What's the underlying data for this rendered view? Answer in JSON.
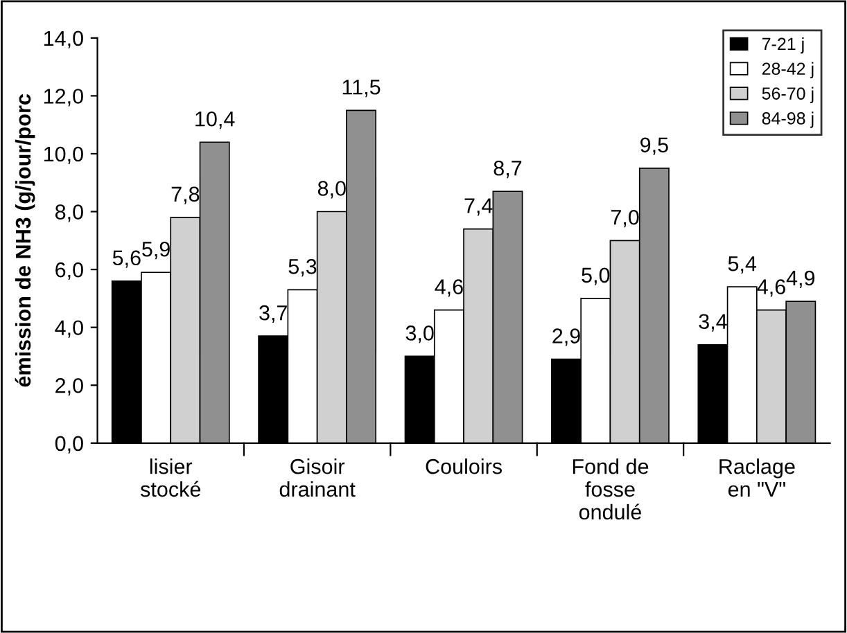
{
  "chart_data": {
    "type": "bar",
    "ylabel": "émission de NH3 (g/jour/porc",
    "categories": [
      "lisier\nstocké",
      "Gisoir\ndrainant",
      "Couloirs",
      "Fond de\nfosse\nondulé",
      "Raclage\nen \"V\""
    ],
    "series": [
      {
        "name": "7-21 j",
        "color": "#000000",
        "values": [
          5.6,
          3.7,
          3.0,
          2.9,
          3.4
        ],
        "value_labels": [
          "5,6",
          "3,7",
          "3,0",
          "2,9",
          "3,4"
        ]
      },
      {
        "name": "28-42 j",
        "color": "#ffffff",
        "values": [
          5.9,
          5.3,
          4.6,
          5.0,
          5.4
        ],
        "value_labels": [
          "5,9",
          "5,3",
          "4,6",
          "5,0",
          "5,4"
        ]
      },
      {
        "name": "56-70 j",
        "color": "#d0d0d0",
        "values": [
          7.8,
          8.0,
          7.4,
          7.0,
          4.6
        ],
        "value_labels": [
          "7,8",
          "8,0",
          "7,4",
          "7,0",
          "4,6"
        ]
      },
      {
        "name": "84-98 j",
        "color": "#909090",
        "values": [
          10.4,
          11.5,
          8.7,
          9.5,
          4.9
        ],
        "value_labels": [
          "10,4",
          "11,5",
          "8,7",
          "9,5",
          "4,9"
        ]
      }
    ],
    "ylim": [
      0,
      14
    ],
    "yticks": [
      {
        "value": 0,
        "label": "0,0"
      },
      {
        "value": 2,
        "label": "2,0"
      },
      {
        "value": 4,
        "label": "4,0"
      },
      {
        "value": 6,
        "label": "6,0"
      },
      {
        "value": 8,
        "label": "8,0"
      },
      {
        "value": 10,
        "label": "10,0"
      },
      {
        "value": 12,
        "label": "12,0"
      },
      {
        "value": 14,
        "label": "14,0"
      }
    ],
    "grid": false,
    "legend": "top right"
  }
}
